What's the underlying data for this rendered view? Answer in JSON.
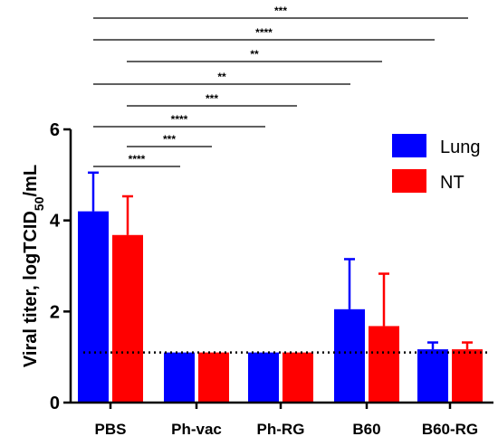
{
  "chart_data": {
    "type": "bar",
    "ylabel": {
      "main": "Viral titer, logTCID",
      "sub": "50",
      "tail": "/mL"
    },
    "ylim": [
      0,
      6
    ],
    "yticks": [
      "0",
      "2",
      "4",
      "6"
    ],
    "categories": [
      "PBS",
      "Ph-vac",
      "Ph-RG",
      "B60",
      "B60-RG"
    ],
    "series": [
      {
        "name": "Lung",
        "color": "#0000ff",
        "values": [
          4.2,
          1.1,
          1.1,
          2.05,
          1.17
        ],
        "errors": [
          0.85,
          0,
          0,
          1.1,
          0.15
        ]
      },
      {
        "name": "NT",
        "color": "#ff0000",
        "values": [
          3.68,
          1.1,
          1.1,
          1.68,
          1.17
        ],
        "errors": [
          0.85,
          0,
          0,
          1.15,
          0.15
        ]
      }
    ],
    "detection_limit": 1.1,
    "legend_position": "top-right",
    "significance": [
      {
        "label": "***",
        "from": "PBS",
        "to": "B60-RG"
      },
      {
        "label": "****",
        "from": "PBS",
        "to": "B60"
      },
      {
        "label": "**",
        "from": "Ph-vac",
        "to": "B60"
      },
      {
        "label": "**",
        "from": "PBS",
        "to": "B60"
      },
      {
        "label": "***",
        "from": "PBS",
        "to": "Ph-RG"
      },
      {
        "label": "****",
        "from": "PBS",
        "to": "Ph-RG"
      },
      {
        "label": "***",
        "from": "PBS",
        "to": "Ph-vac"
      },
      {
        "label": "****",
        "from": "PBS",
        "to": "Ph-vac"
      }
    ]
  }
}
